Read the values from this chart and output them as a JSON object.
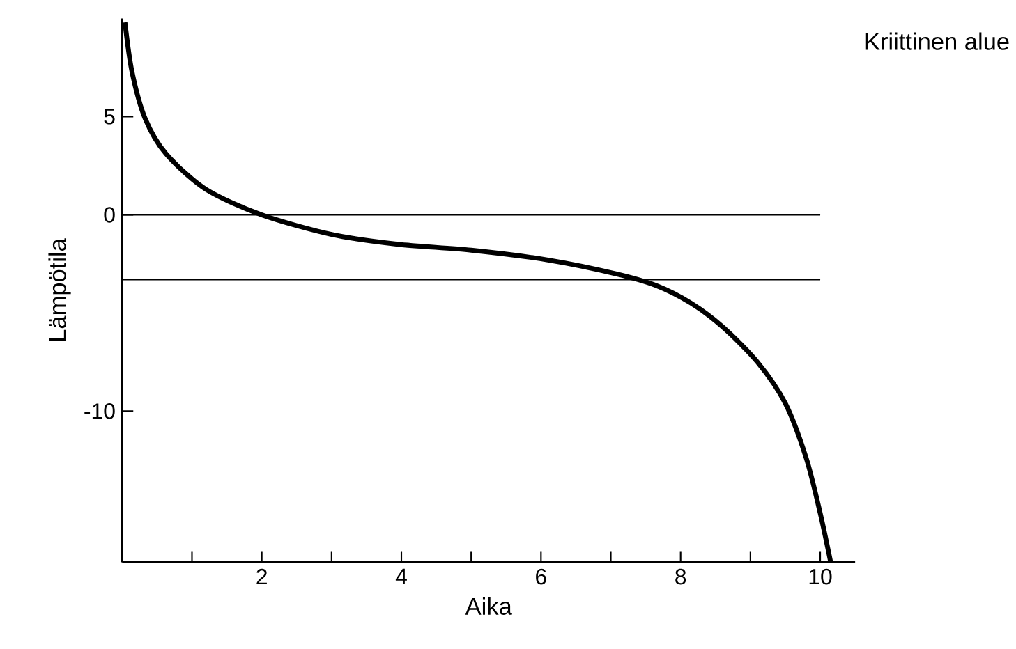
{
  "chart_data": {
    "type": "line",
    "xlabel": "Aika",
    "ylabel": "Lämpötila",
    "x": [
      0.04,
      0.14,
      0.33,
      0.63,
      1.2,
      2,
      3,
      3.95,
      5,
      6.1,
      7.07,
      7.65,
      8.15,
      8.6,
      9.1,
      9.5,
      9.8,
      10,
      10.15
    ],
    "series": [
      {
        "color": "#000000",
        "values": [
          9.8,
          7.3,
          4.9,
          3.1,
          1.3,
          0,
          -1,
          -1.5,
          -1.8,
          -2.3,
          -3,
          -3.6,
          -4.5,
          -5.7,
          -7.5,
          -9.6,
          -12.4,
          -15.2,
          -17.7
        ]
      }
    ],
    "xlim": [
      0,
      10.5
    ],
    "ylim": [
      -17.7,
      10
    ],
    "xticks": [
      {
        "value": 1,
        "label": null
      },
      2,
      {
        "value": 3,
        "label": null
      },
      4,
      {
        "value": 5,
        "label": null
      },
      6,
      {
        "value": 7,
        "label": null
      },
      8,
      {
        "value": 9,
        "label": null
      },
      10
    ],
    "yticks": [
      -10,
      0,
      5
    ],
    "ref_lines": [
      {
        "axis": "y",
        "value": 0,
        "color": "#000000"
      },
      {
        "axis": "y",
        "value": -3.3,
        "color": "#000000"
      }
    ],
    "annotations": [
      "Kriittinen alue"
    ],
    "grid": false,
    "marker": "none",
    "line_style": "solid"
  }
}
